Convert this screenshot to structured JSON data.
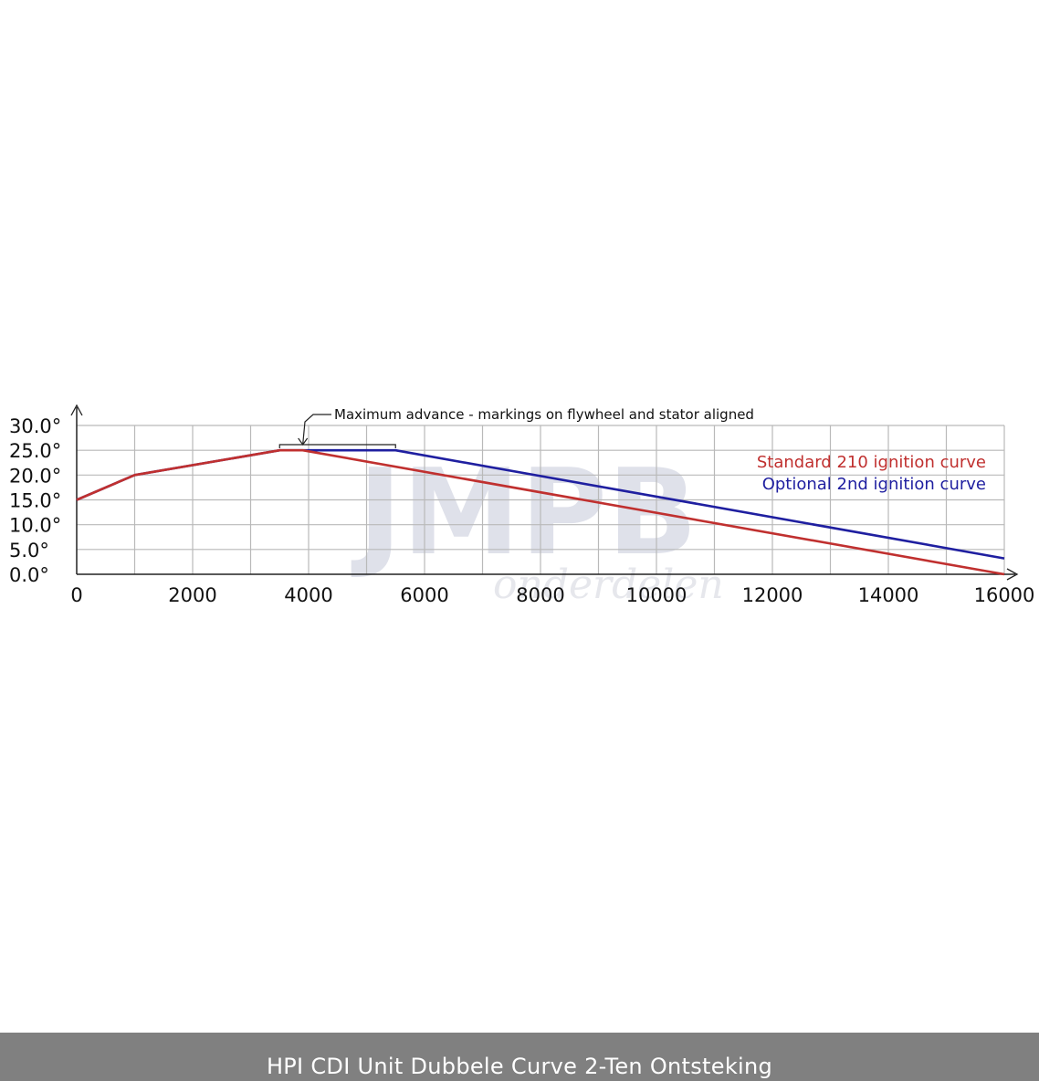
{
  "caption": "HPI CDI Unit Dubbele Curve 2-Ten Ontsteking",
  "watermark": {
    "logo_text": "JMPB",
    "sub_text": "onderdelen"
  },
  "chart_data": {
    "type": "line",
    "title": "",
    "xlabel": "",
    "ylabel": "",
    "xlim": [
      0,
      16000
    ],
    "ylim": [
      0,
      30
    ],
    "x_ticks": [
      0,
      2000,
      4000,
      6000,
      8000,
      10000,
      12000,
      14000,
      16000
    ],
    "x_tick_labels": [
      "0",
      "2000",
      "4000",
      "6000",
      "8000",
      "10000",
      "12000",
      "14000",
      "16000"
    ],
    "y_ticks": [
      0,
      5,
      10,
      15,
      20,
      25,
      30
    ],
    "y_tick_labels": [
      "0.0°",
      "5.0°",
      "10.0°",
      "15.0°",
      "20.0°",
      "25.0°",
      "30.0°"
    ],
    "grid": true,
    "legend_position": "top-right",
    "series": [
      {
        "name": "Standard 210 ignition curve",
        "color": "#c0302f",
        "points": [
          [
            0,
            15
          ],
          [
            1000,
            20
          ],
          [
            3500,
            25
          ],
          [
            3900,
            25
          ],
          [
            16000,
            0
          ]
        ]
      },
      {
        "name": "Optional 2nd ignition curve",
        "color": "#1f1fa0",
        "points": [
          [
            0,
            15
          ],
          [
            1000,
            20
          ],
          [
            3500,
            25
          ],
          [
            5500,
            25
          ],
          [
            16000,
            3.2
          ]
        ]
      }
    ],
    "annotation": {
      "text": "Maximum advance - markings on flywheel and stator aligned",
      "bracket_x": [
        3500,
        5500
      ],
      "arrow_x": 3900
    }
  }
}
